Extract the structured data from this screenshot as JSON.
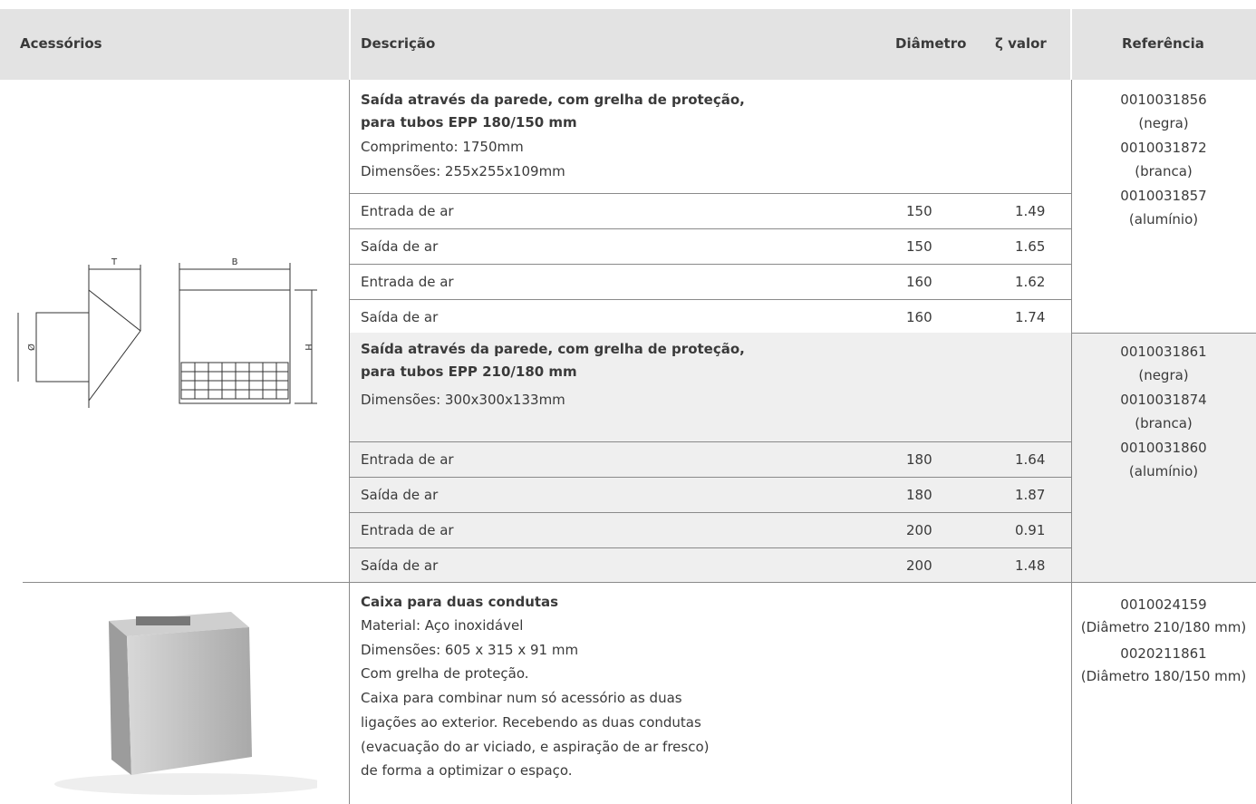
{
  "header": {
    "columns": [
      "Acessórios",
      "Descrição",
      "Diâmetro",
      "ζ valor",
      "Referência"
    ]
  },
  "diagram": {
    "labels": [
      "T",
      "B",
      "Ø",
      "H"
    ]
  },
  "groups": [
    {
      "title_lines": [
        "Saída através da parede, com grelha de proteção,",
        "para tubos EPP 180/150 mm"
      ],
      "details": [
        "Comprimento: 1750mm",
        "Dimensões: 255x255x109mm"
      ],
      "rows": [
        {
          "label": "Entrada de ar",
          "diameter": 150,
          "zeta": 1.49
        },
        {
          "label": "Saída de ar",
          "diameter": 150,
          "zeta": 1.65
        },
        {
          "label": "Entrada de ar",
          "diameter": 160,
          "zeta": 1.62
        },
        {
          "label": "Saída de ar",
          "diameter": 160,
          "zeta": 1.74
        }
      ],
      "references": [
        {
          "code": "0010031856",
          "note": "(negra)"
        },
        {
          "code": "0010031872",
          "note": "(branca)"
        },
        {
          "code": "0010031857",
          "note": "(alumínio)"
        }
      ]
    },
    {
      "title_lines": [
        "Saída através da parede, com grelha de proteção,",
        "para tubos EPP 210/180 mm"
      ],
      "details": [
        "Dimensões: 300x300x133mm"
      ],
      "rows": [
        {
          "label": "Entrada de ar",
          "diameter": 180,
          "zeta": 1.64
        },
        {
          "label": "Saída de ar",
          "diameter": 180,
          "zeta": 1.87
        },
        {
          "label": "Entrada de ar",
          "diameter": 200,
          "zeta": 0.91
        },
        {
          "label": "Saída de ar",
          "diameter": 200,
          "zeta": 1.48
        }
      ],
      "references": [
        {
          "code": "0010031861",
          "note": "(negra)"
        },
        {
          "code": "0010031874",
          "note": "(branca)"
        },
        {
          "code": "0010031860",
          "note": "(alumínio)"
        }
      ]
    },
    {
      "title_lines": [
        "Caixa para duas condutas"
      ],
      "details": [
        "Material: Aço inoxidável",
        "Dimensões: 605 x 315 x 91 mm",
        "Com grelha de proteção.",
        "Caixa para combinar num só acessório as duas",
        "ligações ao exterior. Recebendo as duas condutas",
        "(evacuação do ar viciado, e aspiração de ar fresco)",
        "de forma a optimizar o espaço."
      ],
      "rows": [],
      "references": [
        {
          "code": "0010024159",
          "note": "(Diâmetro 210/180 mm)"
        },
        {
          "code": "0020211861",
          "note": "(Diâmetro 180/150 mm)"
        }
      ]
    }
  ]
}
